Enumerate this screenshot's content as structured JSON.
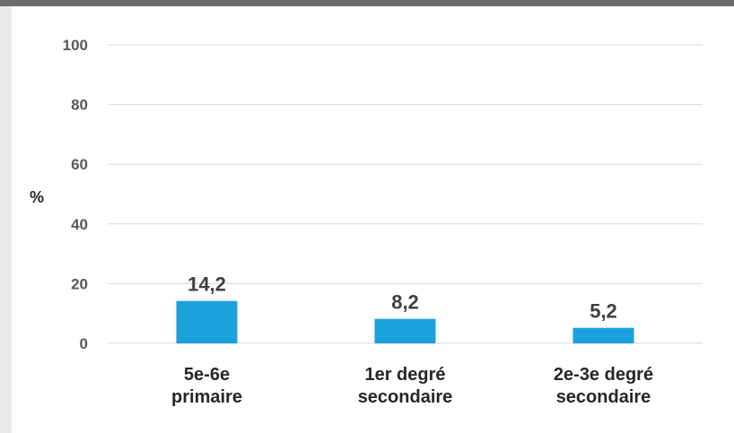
{
  "chart_data": {
    "type": "bar",
    "categories": [
      [
        "5e-6e",
        "primaire"
      ],
      [
        "1er degré",
        "secondaire"
      ],
      [
        "2e-3e degré",
        "secondaire"
      ]
    ],
    "values": [
      14.2,
      8.2,
      5.2
    ],
    "data_labels": [
      "14,2",
      "8,2",
      "5,2"
    ],
    "ylabel": "%",
    "ylim": [
      0,
      100
    ],
    "yticks": [
      "0",
      "20",
      "40",
      "60",
      "80",
      "100"
    ],
    "grid": true,
    "bar_color": "#1ba1db",
    "grid_color": "#d9d9d9"
  }
}
